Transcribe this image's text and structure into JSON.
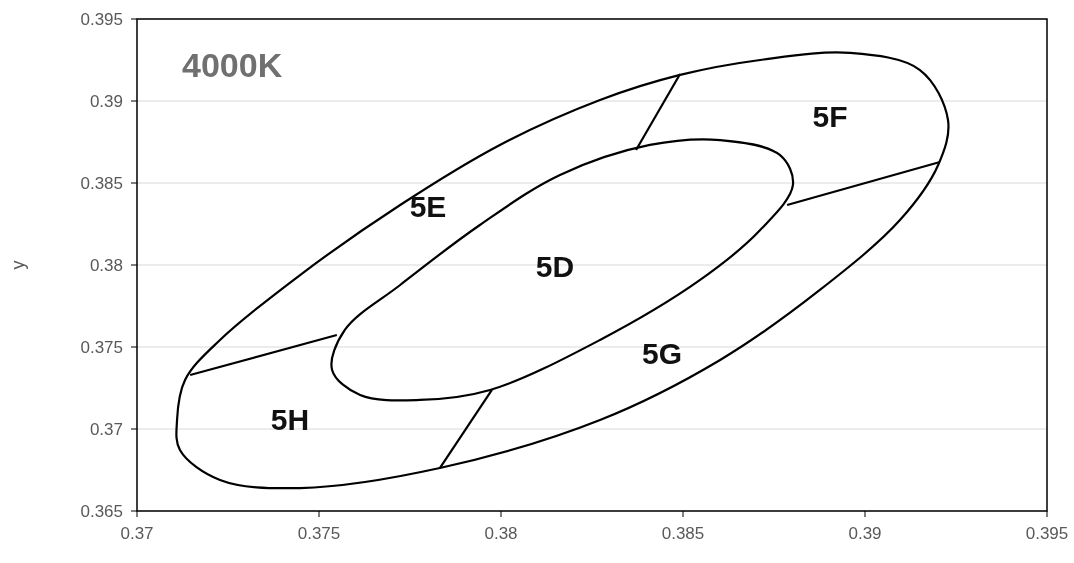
{
  "chart_data": {
    "type": "line",
    "title": "4000K",
    "ylabel": "y",
    "xlim": [
      0.37,
      0.395
    ],
    "xticks": [
      0.37,
      0.375,
      0.38,
      0.385,
      0.39,
      0.395
    ],
    "ylim": [
      0.365,
      0.395
    ],
    "yticks": [
      0.365,
      0.37,
      0.375,
      0.38,
      0.385,
      0.39,
      0.395
    ],
    "grid": "y",
    "marker": "none",
    "line_style": "solid",
    "series": [
      {
        "type": "line",
        "color": "#000000",
        "x": [
          0.37146,
          0.37549
        ],
        "values": [
          0.37329,
          0.37573
        ]
      },
      {
        "type": "line",
        "color": "#000000",
        "x": [
          0.37832,
          0.37975
        ],
        "values": [
          0.36762,
          0.37238
        ]
      },
      {
        "type": "line",
        "color": "#000000",
        "x": [
          0.38786,
          0.39206
        ],
        "values": [
          0.38366,
          0.38628
        ]
      },
      {
        "type": "line",
        "color": "#000000",
        "x": [
          0.38371,
          0.38492
        ],
        "values": [
          0.38701,
          0.39165
        ]
      }
    ],
    "annotations": [
      "5F",
      "5E",
      "5D",
      "5G",
      "5H"
    ]
  }
}
